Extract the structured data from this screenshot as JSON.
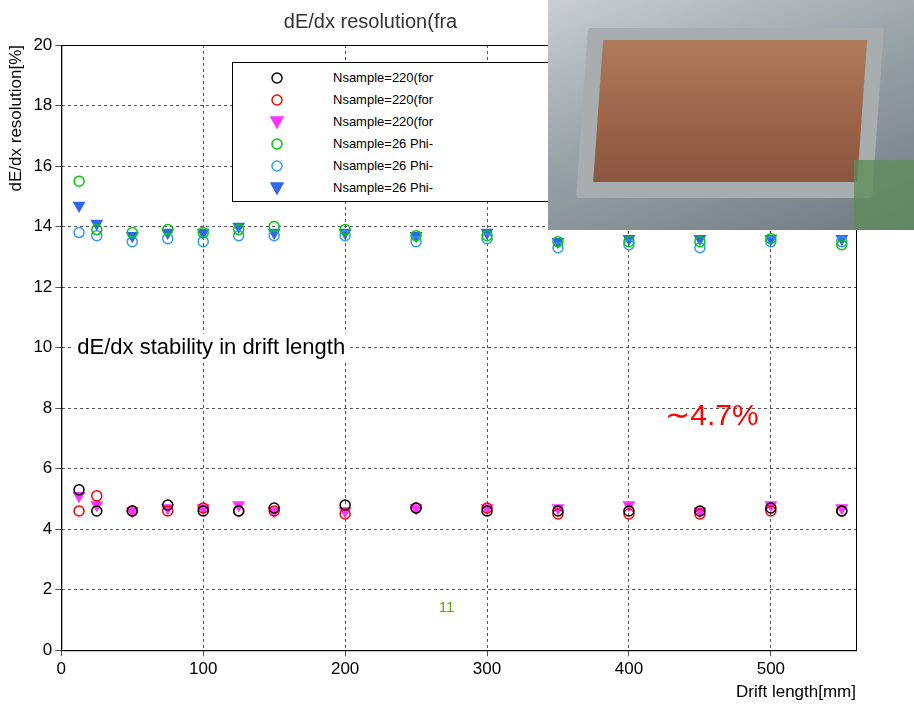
{
  "chart_data": {
    "type": "scatter",
    "title": "dE/dx resolution(fra",
    "x_label": "Drift length[mm]",
    "y_label": "dE/dx resolution[%]",
    "x": [
      12.5,
      25,
      50,
      75,
      100,
      125,
      150,
      200,
      250,
      300,
      350,
      400,
      450,
      500,
      550
    ],
    "series": [
      {
        "name": "Nsample=220(for",
        "color": "#000000",
        "marker": "circle_open",
        "values": [
          5.3,
          4.6,
          4.6,
          4.8,
          4.6,
          4.6,
          4.7,
          4.8,
          4.7,
          4.6,
          4.6,
          4.6,
          4.6,
          4.7,
          4.6
        ]
      },
      {
        "name": "Nsample=220(for",
        "color": "#ff0000",
        "marker": "circle_open",
        "values": [
          4.6,
          5.1,
          4.6,
          4.6,
          4.7,
          4.6,
          4.6,
          4.5,
          4.7,
          4.7,
          4.5,
          4.5,
          4.5,
          4.6,
          4.6
        ]
      },
      {
        "name": "Nsample=220(for",
        "color": "#ff33ff",
        "marker": "triangle_down",
        "values": [
          5.1,
          4.8,
          4.6,
          4.7,
          4.7,
          4.8,
          4.6,
          4.6,
          4.7,
          4.7,
          4.7,
          4.8,
          4.6,
          4.8,
          4.7
        ]
      },
      {
        "name": "Nsample=26 Phi-",
        "color": "#00cc00",
        "marker": "circle_open",
        "values": [
          15.5,
          13.9,
          13.8,
          13.9,
          13.8,
          13.9,
          14.0,
          13.9,
          13.7,
          13.7,
          13.5,
          13.5,
          13.5,
          13.6,
          13.4
        ]
      },
      {
        "name": "Nsample=26 Phi-",
        "color": "#3399ff",
        "marker": "circle_open",
        "values": [
          13.8,
          13.7,
          13.5,
          13.6,
          13.5,
          13.7,
          13.7,
          13.7,
          13.5,
          13.6,
          13.3,
          13.4,
          13.3,
          13.5,
          13.5
        ]
      },
      {
        "name": "Nsample=26 Phi-",
        "color": "#3366ee",
        "marker": "triangle_down",
        "values": [
          14.7,
          14.1,
          13.7,
          13.8,
          13.8,
          14.0,
          13.8,
          13.8,
          13.7,
          13.8,
          13.5,
          13.6,
          13.6,
          13.6,
          13.6
        ]
      }
    ],
    "xlim": [
      0,
      560
    ],
    "xticks": [
      0,
      100,
      200,
      300,
      400,
      500
    ],
    "ylim": [
      0,
      20
    ],
    "yticks": [
      0,
      2,
      4,
      6,
      8,
      10,
      12,
      14,
      16,
      18,
      20
    ],
    "grid": true,
    "legend": "top",
    "annotations": [
      {
        "text": "dE/dx stability in drift length",
        "color": "#000000"
      },
      {
        "text": "∼4.7%",
        "color": "#ff0000"
      },
      {
        "text": "11",
        "color": "#66aa00"
      }
    ]
  }
}
